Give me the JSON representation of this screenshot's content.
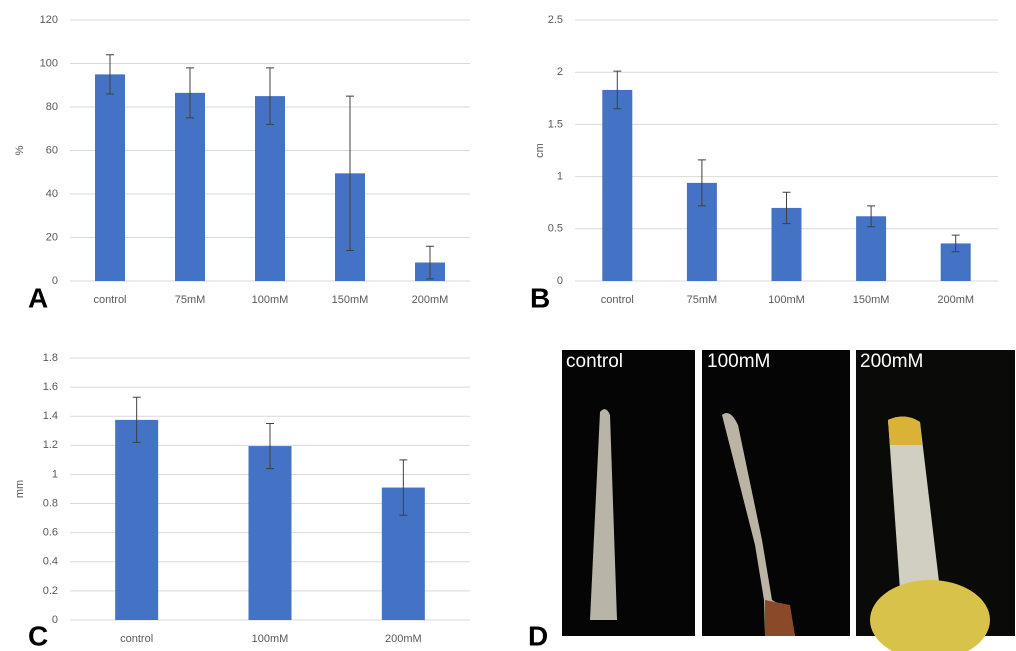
{
  "chart_data": [
    {
      "type": "bar",
      "panel": "A",
      "y_label": "%",
      "categories": [
        "control",
        "75mM",
        "100mM",
        "150mM",
        "200mM"
      ],
      "values": [
        95,
        86.5,
        85,
        49.5,
        8.5
      ],
      "errors": [
        9,
        11.5,
        13,
        35.5,
        7.5
      ],
      "color": "#4472c4",
      "ylim": [
        0,
        120
      ],
      "yticks": [
        0,
        20,
        40,
        60,
        80,
        100,
        120
      ],
      "grid": true
    },
    {
      "type": "bar",
      "panel": "B",
      "y_label": "cm",
      "categories": [
        "control",
        "75mM",
        "100mM",
        "150mM",
        "200mM"
      ],
      "values": [
        1.83,
        0.94,
        0.7,
        0.62,
        0.36
      ],
      "errors": [
        0.18,
        0.22,
        0.15,
        0.1,
        0.08
      ],
      "color": "#4472c4",
      "ylim": [
        0,
        2.5
      ],
      "yticks": [
        0,
        0.5,
        1,
        1.5,
        2,
        2.5
      ],
      "grid": true
    },
    {
      "type": "bar",
      "panel": "C",
      "y_label": "mm",
      "categories": [
        "control",
        "100mM",
        "200mM"
      ],
      "values": [
        1.375,
        1.195,
        0.91
      ],
      "errors": [
        0.155,
        0.155,
        0.19
      ],
      "color": "#4472c4",
      "ylim": [
        0,
        1.8
      ],
      "yticks": [
        0,
        0.2,
        0.4,
        0.6,
        0.8,
        1,
        1.2,
        1.4,
        1.6,
        1.8
      ],
      "grid": true
    }
  ],
  "images": {
    "panel": "D",
    "labels": [
      "control",
      "100mM",
      "200mM"
    ]
  }
}
